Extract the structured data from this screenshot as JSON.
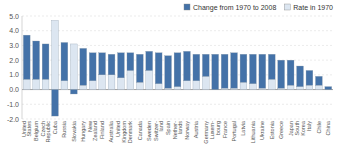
{
  "chart_data": {
    "type": "bar",
    "stacked": true,
    "categories": [
      "United\nStates",
      "Belgium",
      "Czech\nRepublic",
      "Cuba",
      "Russia",
      "Slovakia",
      "Hungary",
      "New\nZealand",
      "Finland",
      "Australia",
      "United\nKingdom",
      "Denmark",
      "Canada",
      "Sweden",
      "Switzer-\nland",
      "Spain",
      "Nether-\nlands",
      "Norway",
      "Austria",
      "Germany",
      "Luxem-\nbourg",
      "France",
      "Portugal",
      "Latvia",
      "Lithuania",
      "Ukraine",
      "Estonia",
      "Greece",
      "Japan",
      "South\nKorea",
      "Italy",
      "Chile",
      "China"
    ],
    "series": [
      {
        "name": "Change from 1970 to 2008",
        "color": "#4472a8",
        "values": [
          3.0,
          2.6,
          2.4,
          -1.8,
          2.6,
          -0.3,
          2.5,
          1.9,
          1.5,
          1.4,
          1.7,
          1.2,
          1.9,
          1.3,
          2.1,
          2.2,
          2.3,
          2.0,
          1.8,
          1.5,
          2.4,
          2.3,
          2.4,
          1.9,
          2.0,
          2.3,
          1.7,
          1.9,
          1.7,
          1.4,
          1.0,
          0.6,
          0.2
        ]
      },
      {
        "name": "Rate in 1970",
        "color": "#dce6f1",
        "values": [
          0.7,
          0.7,
          0.7,
          4.7,
          0.6,
          3.1,
          0.3,
          0.6,
          1.0,
          1.0,
          0.8,
          1.3,
          0.5,
          1.3,
          0.4,
          0.1,
          0.2,
          0.6,
          0.6,
          0.9,
          0.0,
          0.1,
          0.1,
          0.5,
          0.4,
          0.1,
          0.7,
          0.1,
          0.3,
          0.2,
          0.3,
          0.3,
          0.0
        ]
      }
    ],
    "ylim": [
      -2.0,
      5.0
    ],
    "yticks": [
      {
        "value": -2.0,
        "label": "-2.0"
      },
      {
        "value": -1.0,
        "label": "-1.0"
      },
      {
        "value": 0.0,
        "label": "0.0"
      },
      {
        "value": 1.0,
        "label": "1.0"
      },
      {
        "value": 2.0,
        "label": "2.0"
      },
      {
        "value": 3.0,
        "label": "3.0"
      },
      {
        "value": 4.0,
        "label": "4.0"
      },
      {
        "value": 5.0,
        "label": "5.0"
      }
    ],
    "grid": true,
    "legend": "upper right"
  }
}
